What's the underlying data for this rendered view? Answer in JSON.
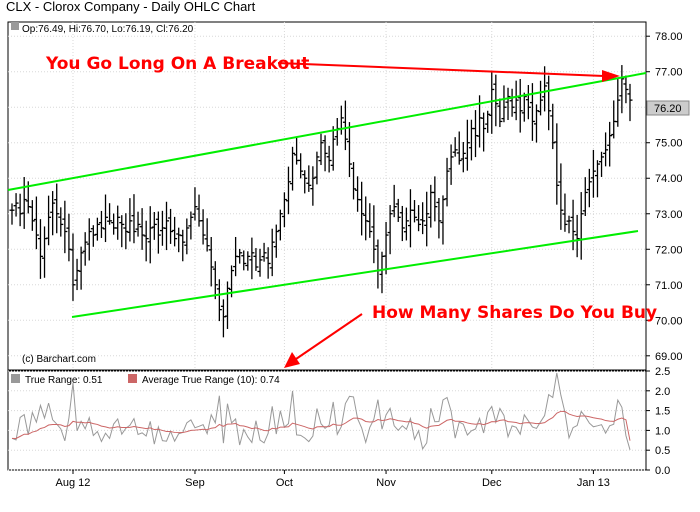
{
  "header": {
    "title": "CLX - Clorox Company - Daily OHLC Chart",
    "ohlc_readout": "Op:76.49, Hi:76.70, Lo:76.19, Cl:76.20",
    "watermark": "(c) Barchart.com"
  },
  "annotations": {
    "top": "You Go Long On A Breakout",
    "bottom": "How Many Shares Do You Buy",
    "color": "#ff0000"
  },
  "colors": {
    "trendline": "#00ee00",
    "bars": "#000000",
    "true_range": "#999999",
    "atr": "#cc6666"
  },
  "lower_panel": {
    "true_range_label": "True Range: 0.51",
    "atr_label": "Average True Range (10): 0.74"
  },
  "chart_data": {
    "type": "ohlc",
    "price_axis": {
      "ylim": [
        68.6,
        78.4
      ],
      "ticks": [
        "78.00",
        "77.00",
        "76.00",
        "75.00",
        "74.00",
        "73.00",
        "72.00",
        "71.00",
        "70.00",
        "69.00"
      ],
      "last_price_label": "76.20"
    },
    "x_axis": {
      "ticks": [
        "Aug 12",
        "Sep",
        "Oct",
        "Nov",
        "Dec",
        "Jan 13"
      ],
      "tick_bar_index": [
        15,
        45,
        67,
        92,
        118,
        143
      ]
    },
    "closes": [
      73.1,
      73.3,
      73.0,
      73.4,
      73.2,
      72.8,
      72.4,
      71.8,
      72.3,
      72.9,
      73.3,
      73.0,
      72.7,
      72.5,
      72.0,
      71.0,
      71.4,
      71.9,
      72.2,
      72.5,
      72.4,
      72.7,
      72.6,
      72.9,
      72.8,
      72.6,
      72.9,
      72.7,
      72.5,
      72.8,
      72.5,
      72.7,
      72.4,
      72.3,
      72.6,
      72.7,
      72.4,
      72.6,
      72.8,
      72.5,
      72.3,
      72.4,
      72.2,
      72.6,
      72.9,
      73.2,
      72.8,
      72.4,
      72.1,
      71.5,
      71.0,
      70.3,
      70.1,
      70.9,
      71.4,
      71.8,
      71.9,
      71.6,
      71.8,
      71.9,
      71.5,
      71.7,
      71.9,
      71.6,
      72.2,
      72.5,
      73.0,
      73.4,
      73.9,
      74.7,
      74.5,
      74.2,
      74.0,
      73.8,
      74.0,
      74.6,
      75.0,
      74.7,
      74.5,
      75.1,
      75.4,
      75.7,
      75.1,
      74.4,
      73.7,
      73.4,
      73.0,
      72.8,
      72.5,
      72.0,
      71.4,
      71.8,
      72.4,
      73.0,
      73.2,
      72.9,
      72.6,
      72.8,
      73.1,
      72.9,
      72.7,
      72.8,
      73.0,
      73.6,
      73.2,
      72.8,
      73.4,
      74.2,
      74.6,
      74.8,
      74.5,
      74.7,
      75.0,
      75.4,
      75.2,
      75.7,
      75.4,
      75.8,
      76.5,
      76.1,
      75.6,
      76.0,
      76.3,
      76.0,
      76.2,
      75.9,
      76.3,
      76.0,
      75.6,
      75.9,
      76.2,
      76.6,
      75.9,
      75.0,
      73.8,
      73.1,
      72.7,
      72.8,
      72.5,
      72.3,
      73.0,
      73.6,
      73.9,
      74.2,
      74.4,
      74.6,
      74.8,
      75.2,
      75.6,
      76.2,
      76.8,
      76.5,
      76.2
    ],
    "true_range_last": 0.51,
    "atr_last": 0.74,
    "lower_axis": {
      "ylim": [
        0,
        2.5
      ],
      "ticks": [
        "2.5",
        "2.0",
        "1.5",
        "1.0",
        "0.5",
        "0.0"
      ]
    }
  }
}
